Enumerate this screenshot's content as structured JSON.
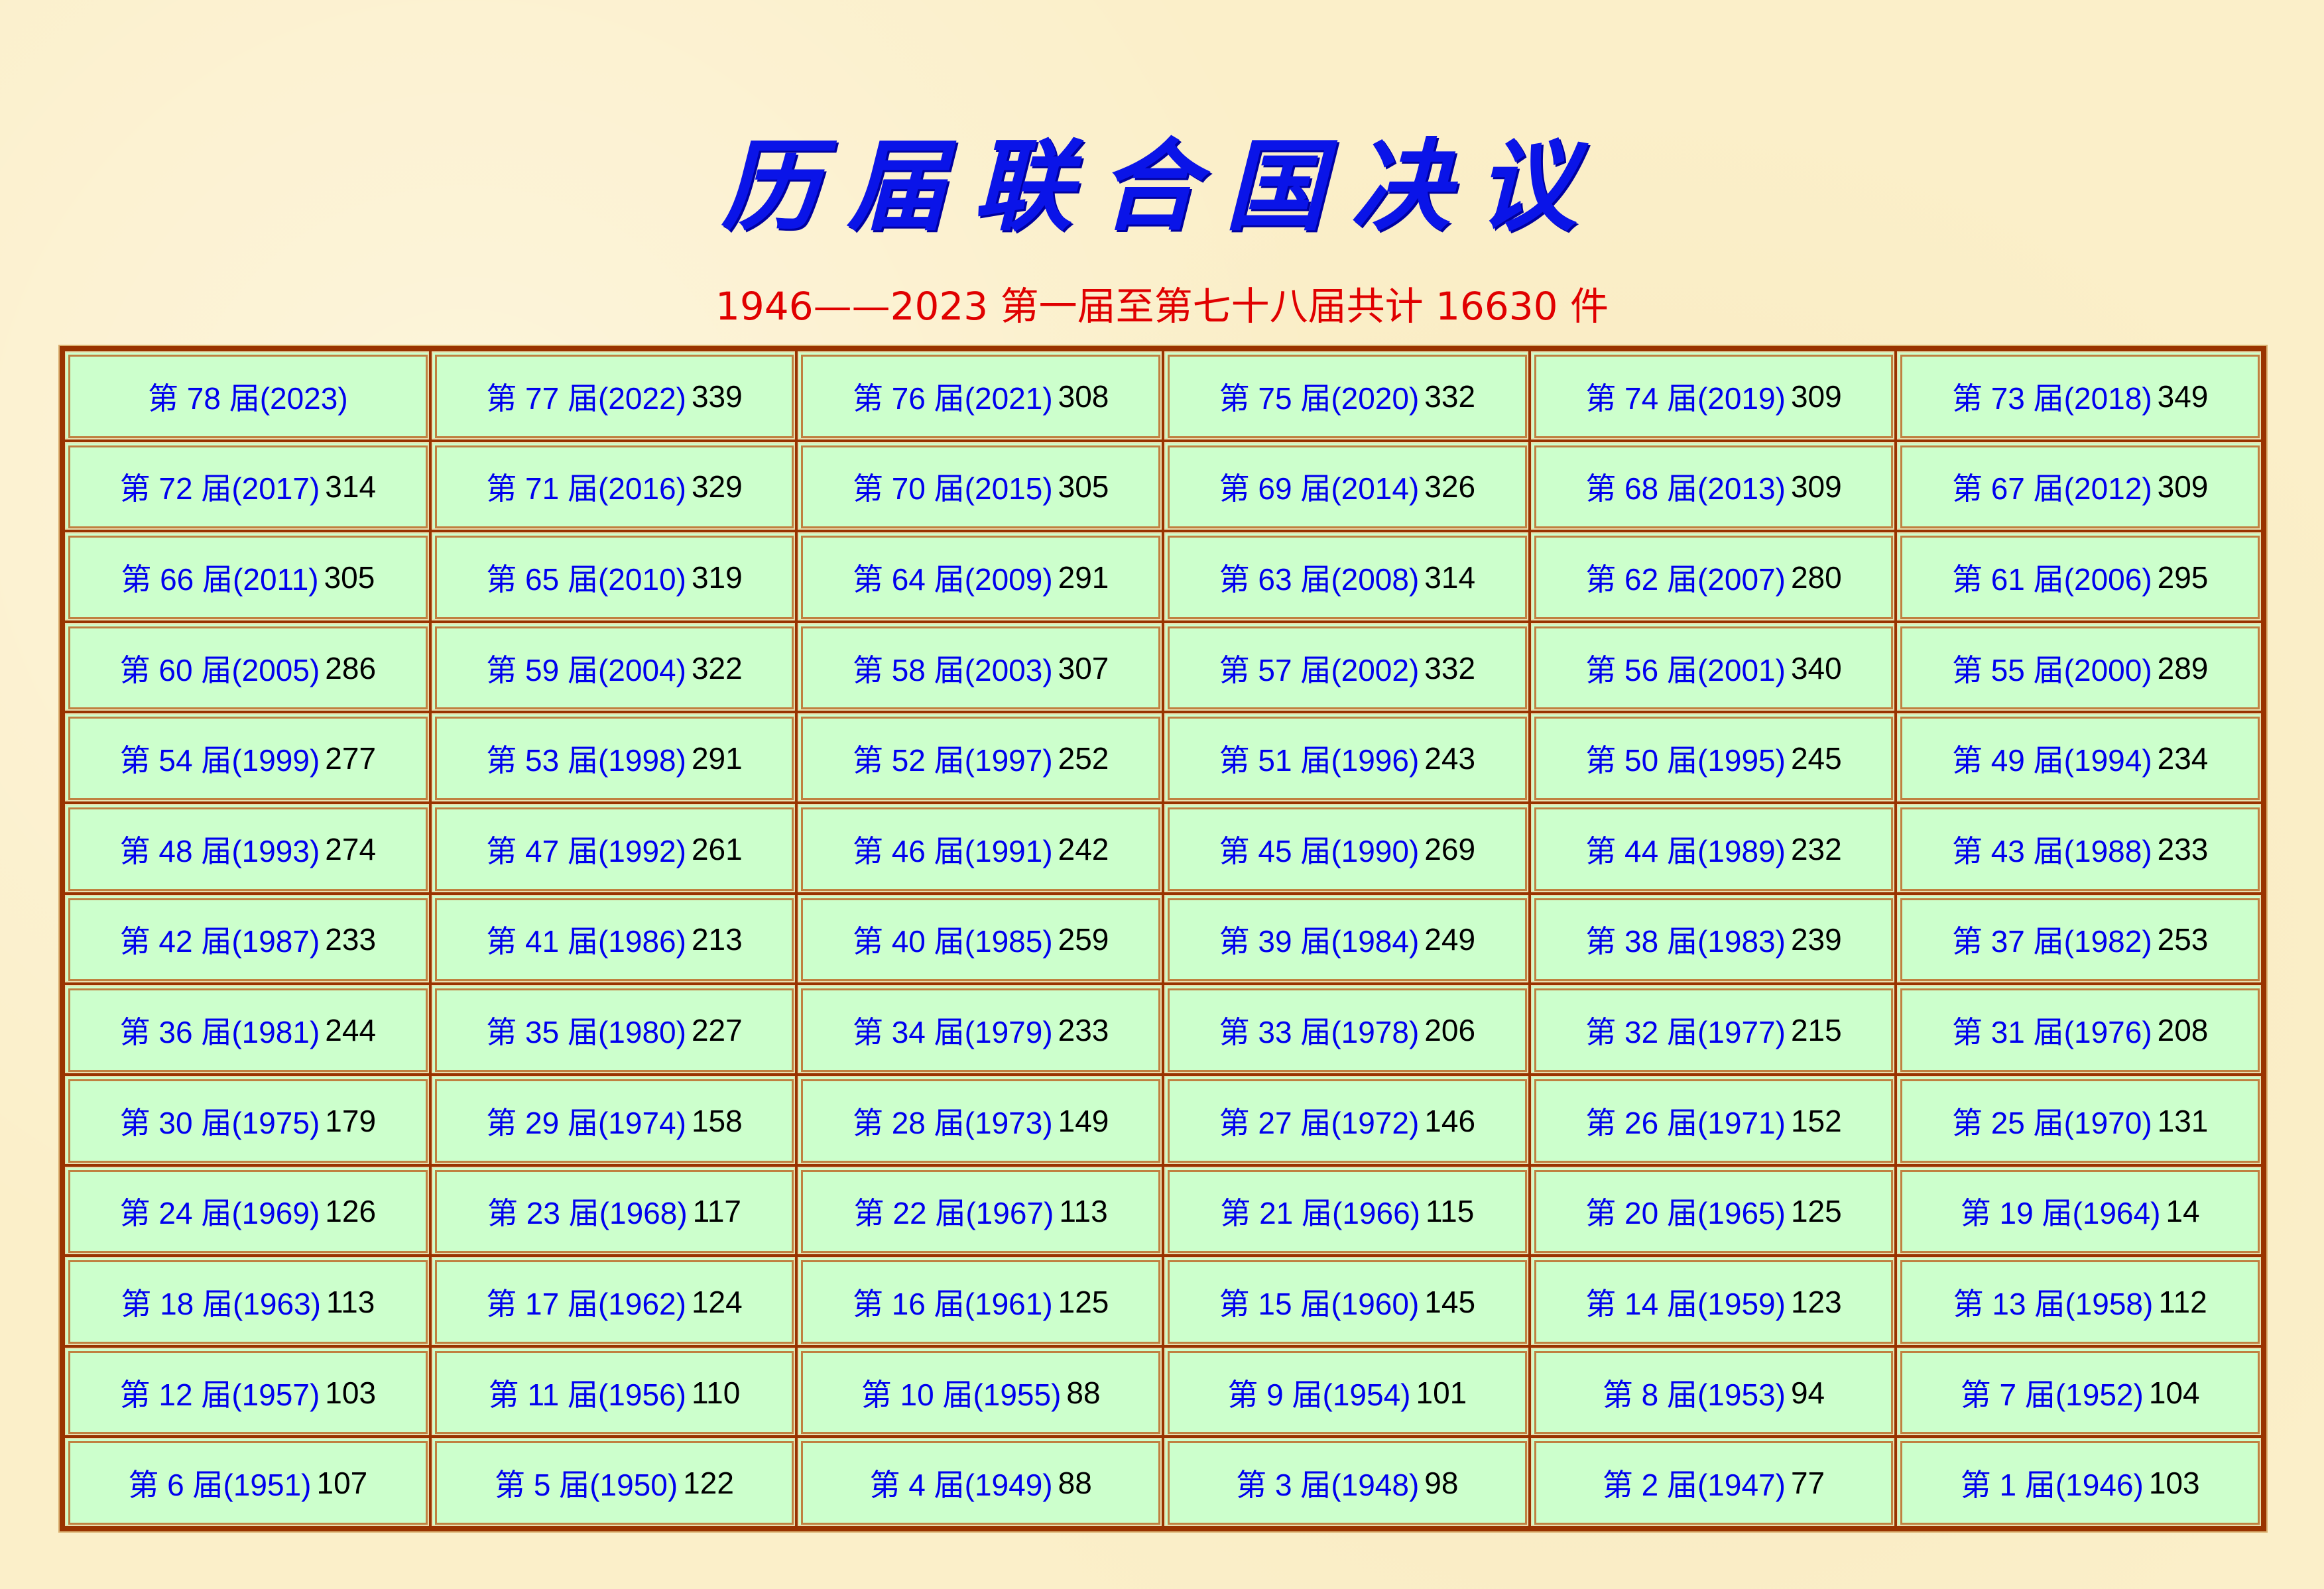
{
  "title": "历届联合国决议",
  "subtitle": "1946——2023 第一届至第七十八届共计 16630 件",
  "colors": {
    "title": "#0a14e8",
    "subtitle": "#e00000",
    "cell_bg": "#ccffcc",
    "border": "#993300",
    "label": "#0000ee",
    "count": "#000000",
    "background": "#fbefc9"
  },
  "sessions": [
    {
      "label": "第 78 届(2023)",
      "count": ""
    },
    {
      "label": "第 77 届(2022)",
      "count": "339"
    },
    {
      "label": "第 76 届(2021)",
      "count": "308"
    },
    {
      "label": "第 75 届(2020)",
      "count": "332"
    },
    {
      "label": "第 74 届(2019)",
      "count": "309"
    },
    {
      "label": "第 73 届(2018)",
      "count": "349"
    },
    {
      "label": "第 72 届(2017)",
      "count": "314"
    },
    {
      "label": "第 71 届(2016)",
      "count": "329"
    },
    {
      "label": "第 70 届(2015)",
      "count": "305"
    },
    {
      "label": "第 69 届(2014)",
      "count": "326"
    },
    {
      "label": "第 68 届(2013)",
      "count": "309"
    },
    {
      "label": "第 67 届(2012)",
      "count": "309"
    },
    {
      "label": "第 66 届(2011)",
      "count": "305"
    },
    {
      "label": "第 65 届(2010)",
      "count": "319"
    },
    {
      "label": "第 64 届(2009)",
      "count": "291"
    },
    {
      "label": "第 63 届(2008)",
      "count": "314"
    },
    {
      "label": "第 62 届(2007)",
      "count": "280"
    },
    {
      "label": "第 61 届(2006)",
      "count": "295"
    },
    {
      "label": "第 60 届(2005)",
      "count": "286"
    },
    {
      "label": "第 59 届(2004)",
      "count": "322"
    },
    {
      "label": "第 58 届(2003)",
      "count": "307"
    },
    {
      "label": "第 57 届(2002)",
      "count": "332"
    },
    {
      "label": "第 56 届(2001)",
      "count": "340"
    },
    {
      "label": "第 55 届(2000)",
      "count": "289"
    },
    {
      "label": "第 54 届(1999)",
      "count": "277"
    },
    {
      "label": "第 53 届(1998)",
      "count": "291"
    },
    {
      "label": "第 52 届(1997)",
      "count": "252"
    },
    {
      "label": "第 51 届(1996)",
      "count": "243"
    },
    {
      "label": "第 50 届(1995)",
      "count": "245"
    },
    {
      "label": "第 49 届(1994)",
      "count": "234"
    },
    {
      "label": "第 48 届(1993)",
      "count": "274"
    },
    {
      "label": "第 47 届(1992)",
      "count": "261"
    },
    {
      "label": "第 46 届(1991)",
      "count": "242"
    },
    {
      "label": "第 45 届(1990)",
      "count": "269"
    },
    {
      "label": "第 44 届(1989)",
      "count": "232"
    },
    {
      "label": "第 43 届(1988)",
      "count": "233"
    },
    {
      "label": "第 42 届(1987)",
      "count": "233"
    },
    {
      "label": "第 41 届(1986)",
      "count": "213"
    },
    {
      "label": "第 40 届(1985)",
      "count": "259"
    },
    {
      "label": "第 39 届(1984)",
      "count": "249"
    },
    {
      "label": "第 38 届(1983)",
      "count": "239"
    },
    {
      "label": "第 37 届(1982)",
      "count": "253"
    },
    {
      "label": "第 36 届(1981)",
      "count": "244"
    },
    {
      "label": "第 35 届(1980)",
      "count": "227"
    },
    {
      "label": "第 34 届(1979)",
      "count": "233"
    },
    {
      "label": "第 33 届(1978)",
      "count": "206"
    },
    {
      "label": "第 32 届(1977)",
      "count": "215"
    },
    {
      "label": "第 31 届(1976)",
      "count": "208"
    },
    {
      "label": "第 30 届(1975)",
      "count": "179"
    },
    {
      "label": "第 29 届(1974)",
      "count": "158"
    },
    {
      "label": "第 28 届(1973)",
      "count": "149"
    },
    {
      "label": "第 27 届(1972)",
      "count": "146"
    },
    {
      "label": "第 26 届(1971)",
      "count": "152"
    },
    {
      "label": "第 25 届(1970)",
      "count": "131"
    },
    {
      "label": "第 24 届(1969)",
      "count": "126"
    },
    {
      "label": "第 23 届(1968)",
      "count": "117"
    },
    {
      "label": "第 22 届(1967)",
      "count": "113"
    },
    {
      "label": "第 21 届(1966)",
      "count": "115"
    },
    {
      "label": "第 20 届(1965)",
      "count": "125"
    },
    {
      "label": "第 19 届(1964)",
      "count": "14"
    },
    {
      "label": "第 18 届(1963)",
      "count": "113"
    },
    {
      "label": "第 17 届(1962)",
      "count": "124"
    },
    {
      "label": "第 16 届(1961)",
      "count": "125"
    },
    {
      "label": "第 15 届(1960)",
      "count": "145"
    },
    {
      "label": "第 14 届(1959)",
      "count": "123"
    },
    {
      "label": "第 13 届(1958)",
      "count": "112"
    },
    {
      "label": "第 12 届(1957)",
      "count": "103"
    },
    {
      "label": "第 11 届(1956)",
      "count": "110"
    },
    {
      "label": "第 10 届(1955)",
      "count": "88"
    },
    {
      "label": "第 9 届(1954)",
      "count": "101"
    },
    {
      "label": "第 8 届(1953)",
      "count": "94"
    },
    {
      "label": "第 7 届(1952)",
      "count": "104"
    },
    {
      "label": "第 6 届(1951)",
      "count": "107"
    },
    {
      "label": "第 5 届(1950)",
      "count": "122"
    },
    {
      "label": "第 4 届(1949)",
      "count": "88"
    },
    {
      "label": "第 3 届(1948)",
      "count": "98"
    },
    {
      "label": "第 2 届(1947)",
      "count": "77"
    },
    {
      "label": "第 1 届(1946)",
      "count": "103"
    }
  ]
}
